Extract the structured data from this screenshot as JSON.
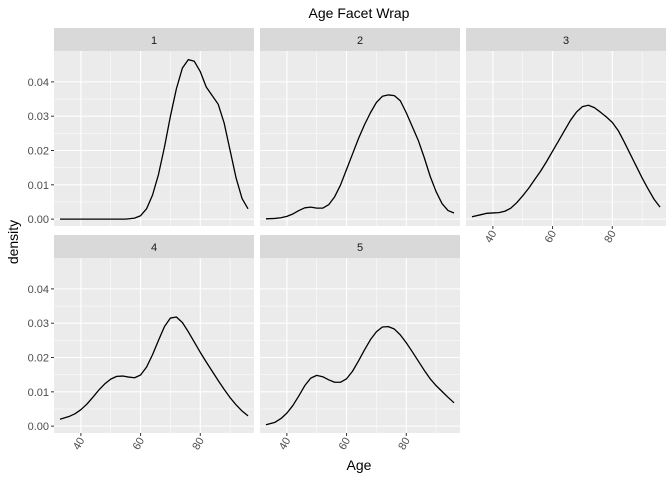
{
  "chart_data": {
    "type": "line",
    "title": "Age Facet Wrap",
    "xlabel": "Age",
    "ylabel": "density",
    "xlim": [
      31,
      98
    ],
    "ylim": [
      -0.002,
      0.049
    ],
    "x_ticks": [
      "40",
      "60",
      "80"
    ],
    "y_ticks": [
      "0.00",
      "0.01",
      "0.02",
      "0.03",
      "0.04"
    ],
    "grid": true,
    "panels": [
      {
        "label": "1",
        "x": [
          33,
          40,
          45,
          50,
          55,
          58,
          60,
          62,
          64,
          66,
          68,
          70,
          72,
          74,
          76,
          78,
          80,
          82,
          84,
          86,
          88,
          90,
          92,
          94,
          96
        ],
        "y": [
          0.0,
          0.0,
          0.0,
          0.0,
          0.0,
          0.0003,
          0.001,
          0.003,
          0.007,
          0.013,
          0.021,
          0.03,
          0.038,
          0.044,
          0.0465,
          0.046,
          0.043,
          0.0385,
          0.036,
          0.0335,
          0.028,
          0.02,
          0.012,
          0.006,
          0.003
        ]
      },
      {
        "label": "2",
        "x": [
          33,
          36,
          38,
          40,
          42,
          44,
          46,
          48,
          50,
          52,
          54,
          56,
          58,
          60,
          62,
          64,
          66,
          68,
          70,
          72,
          74,
          76,
          78,
          80,
          82,
          84,
          86,
          88,
          90,
          92,
          94,
          96
        ],
        "y": [
          0.0001,
          0.0002,
          0.0004,
          0.0008,
          0.0015,
          0.0025,
          0.0033,
          0.0035,
          0.0032,
          0.0032,
          0.0042,
          0.0065,
          0.01,
          0.0145,
          0.019,
          0.0235,
          0.0275,
          0.031,
          0.034,
          0.0358,
          0.0362,
          0.036,
          0.0345,
          0.031,
          0.027,
          0.023,
          0.018,
          0.0125,
          0.008,
          0.0045,
          0.0025,
          0.0018
        ]
      },
      {
        "label": "3",
        "x": [
          33,
          36,
          38,
          40,
          42,
          44,
          46,
          48,
          50,
          52,
          54,
          56,
          58,
          60,
          62,
          64,
          66,
          68,
          70,
          72,
          74,
          76,
          78,
          80,
          82,
          84,
          86,
          88,
          90,
          92,
          94,
          96
        ],
        "y": [
          0.0007,
          0.0013,
          0.0017,
          0.0018,
          0.0019,
          0.0023,
          0.0032,
          0.0048,
          0.0068,
          0.009,
          0.0115,
          0.014,
          0.0168,
          0.0198,
          0.0228,
          0.0258,
          0.0288,
          0.0312,
          0.0328,
          0.0332,
          0.0325,
          0.0312,
          0.0298,
          0.0282,
          0.0258,
          0.0225,
          0.019,
          0.0155,
          0.012,
          0.0088,
          0.0058,
          0.0035
        ]
      },
      {
        "label": "4",
        "x": [
          33,
          36,
          38,
          40,
          42,
          44,
          46,
          48,
          50,
          52,
          54,
          56,
          58,
          60,
          62,
          64,
          66,
          68,
          70,
          72,
          74,
          76,
          78,
          80,
          82,
          84,
          86,
          88,
          90,
          92,
          94,
          96
        ],
        "y": [
          0.002,
          0.0028,
          0.0036,
          0.0048,
          0.0064,
          0.0084,
          0.0105,
          0.0123,
          0.0137,
          0.0145,
          0.0146,
          0.0143,
          0.0141,
          0.0149,
          0.0172,
          0.0208,
          0.025,
          0.029,
          0.0315,
          0.0318,
          0.0302,
          0.0275,
          0.0245,
          0.0215,
          0.0187,
          0.016,
          0.0133,
          0.0107,
          0.0083,
          0.0062,
          0.0044,
          0.003
        ]
      },
      {
        "label": "5",
        "x": [
          33,
          36,
          38,
          40,
          42,
          44,
          46,
          48,
          50,
          52,
          54,
          56,
          58,
          60,
          62,
          64,
          66,
          68,
          70,
          72,
          74,
          76,
          78,
          80,
          82,
          84,
          86,
          88,
          90,
          92,
          94,
          96
        ],
        "y": [
          0.0004,
          0.0011,
          0.0022,
          0.0038,
          0.006,
          0.0088,
          0.0118,
          0.014,
          0.0148,
          0.0144,
          0.0135,
          0.0128,
          0.0128,
          0.0138,
          0.016,
          0.019,
          0.0222,
          0.0252,
          0.0275,
          0.0289,
          0.029,
          0.0283,
          0.0266,
          0.0243,
          0.0217,
          0.019,
          0.0163,
          0.0138,
          0.0118,
          0.0101,
          0.0084,
          0.0068
        ]
      }
    ]
  },
  "colors": {
    "panel_background": "#ebebeb",
    "strip_background": "#d9d9d9",
    "grid_major": "#ffffff",
    "line": "#000000"
  }
}
